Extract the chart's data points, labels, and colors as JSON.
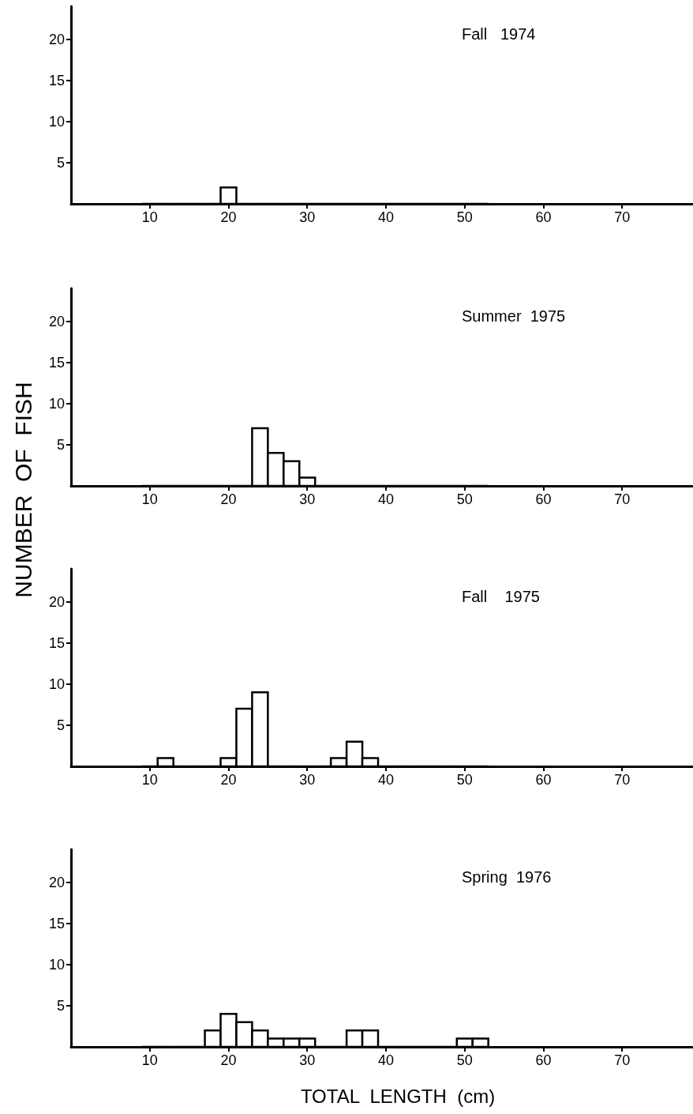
{
  "chart_data": [
    {
      "type": "histogram",
      "title": "Fall   1974",
      "bins": [
        9,
        11,
        13,
        15,
        17,
        19,
        21,
        23,
        25,
        27,
        29,
        31,
        33,
        35,
        37,
        39,
        41,
        43,
        45,
        47,
        49,
        51,
        53
      ],
      "values": [
        0,
        0,
        0,
        0,
        0,
        2,
        0,
        0,
        0,
        0,
        0,
        0,
        0,
        0,
        0,
        0,
        0,
        0,
        0,
        0,
        0,
        0
      ],
      "color": "#000000",
      "xlim": [
        0,
        79
      ],
      "xticks": [
        10,
        20,
        30,
        40,
        50,
        60,
        70
      ],
      "ylim": [
        0,
        24
      ],
      "yticks": [
        5,
        10,
        15,
        20
      ]
    },
    {
      "type": "histogram",
      "title": "Summer  1975",
      "ylabel": "NUMBER  OF  FISH",
      "bins": [
        9,
        11,
        13,
        15,
        17,
        19,
        21,
        23,
        25,
        27,
        29,
        31,
        33,
        35,
        37,
        39,
        41,
        43,
        45,
        47,
        49,
        51,
        53
      ],
      "values": [
        0,
        0,
        0,
        0,
        0,
        0,
        0,
        7,
        4,
        3,
        1,
        0,
        0,
        0,
        0,
        0,
        0,
        0,
        0,
        0,
        0,
        0
      ],
      "color": "#000000",
      "xlim": [
        0,
        79
      ],
      "xticks": [
        10,
        20,
        30,
        40,
        50,
        60,
        70
      ],
      "ylim": [
        0,
        24
      ],
      "yticks": [
        5,
        10,
        15,
        20
      ]
    },
    {
      "type": "histogram",
      "title": "Fall    1975",
      "bins": [
        9,
        11,
        13,
        15,
        17,
        19,
        21,
        23,
        25,
        27,
        29,
        31,
        33,
        35,
        37,
        39,
        41,
        43,
        45,
        47,
        49,
        51,
        53
      ],
      "values": [
        0,
        1,
        0,
        0,
        0,
        1,
        7,
        9,
        0,
        0,
        0,
        0,
        1,
        3,
        1,
        0,
        0,
        0,
        0,
        0,
        0,
        0
      ],
      "color": "#000000",
      "xlim": [
        0,
        79
      ],
      "xticks": [
        10,
        20,
        30,
        40,
        50,
        60,
        70
      ],
      "ylim": [
        0,
        24
      ],
      "yticks": [
        5,
        10,
        15,
        20
      ]
    },
    {
      "type": "histogram",
      "title": "Spring  1976",
      "xlabel": "TOTAL  LENGTH  (cm)",
      "bins": [
        9,
        11,
        13,
        15,
        17,
        19,
        21,
        23,
        25,
        27,
        29,
        31,
        33,
        35,
        37,
        39,
        41,
        43,
        45,
        47,
        49,
        51,
        53
      ],
      "values": [
        0,
        0,
        0,
        0,
        2,
        4,
        3,
        2,
        1,
        1,
        1,
        0,
        0,
        2,
        2,
        0,
        0,
        0,
        0,
        0,
        1,
        1
      ],
      "color": "#000000",
      "xlim": [
        0,
        79
      ],
      "xticks": [
        10,
        20,
        30,
        40,
        50,
        60,
        70
      ],
      "ylim": [
        0,
        24
      ],
      "yticks": [
        5,
        10,
        15,
        20
      ]
    }
  ]
}
